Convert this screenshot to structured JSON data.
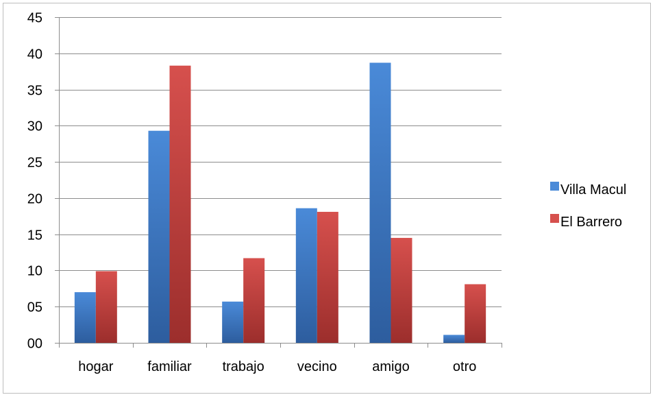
{
  "chart_data": {
    "type": "bar",
    "title": "",
    "xlabel": "",
    "ylabel": "",
    "categories": [
      "hogar",
      "familiar",
      "trabajo",
      "vecino",
      "amigo",
      "otro"
    ],
    "series": [
      {
        "name": "Villa Macul",
        "values": [
          7.0,
          29.3,
          5.7,
          18.6,
          38.7,
          1.1
        ]
      },
      {
        "name": "El Barrero",
        "values": [
          9.9,
          38.3,
          11.7,
          18.1,
          14.5,
          8.1
        ]
      }
    ],
    "ylim": [
      0,
      45
    ],
    "y_ticks": [
      "00",
      "05",
      "10",
      "15",
      "20",
      "25",
      "30",
      "35",
      "40",
      "45"
    ],
    "y_tick_values": [
      0,
      5,
      10,
      15,
      20,
      25,
      30,
      35,
      40,
      45
    ],
    "grid": true,
    "legend_position": "right"
  },
  "colors": {
    "villa_macul_top": "#4a8ad8",
    "villa_macul_bottom": "#2d5d9e",
    "el_barrero_top": "#d6504d",
    "el_barrero_bottom": "#9c2e2c",
    "grid": "#8c8c8c"
  }
}
